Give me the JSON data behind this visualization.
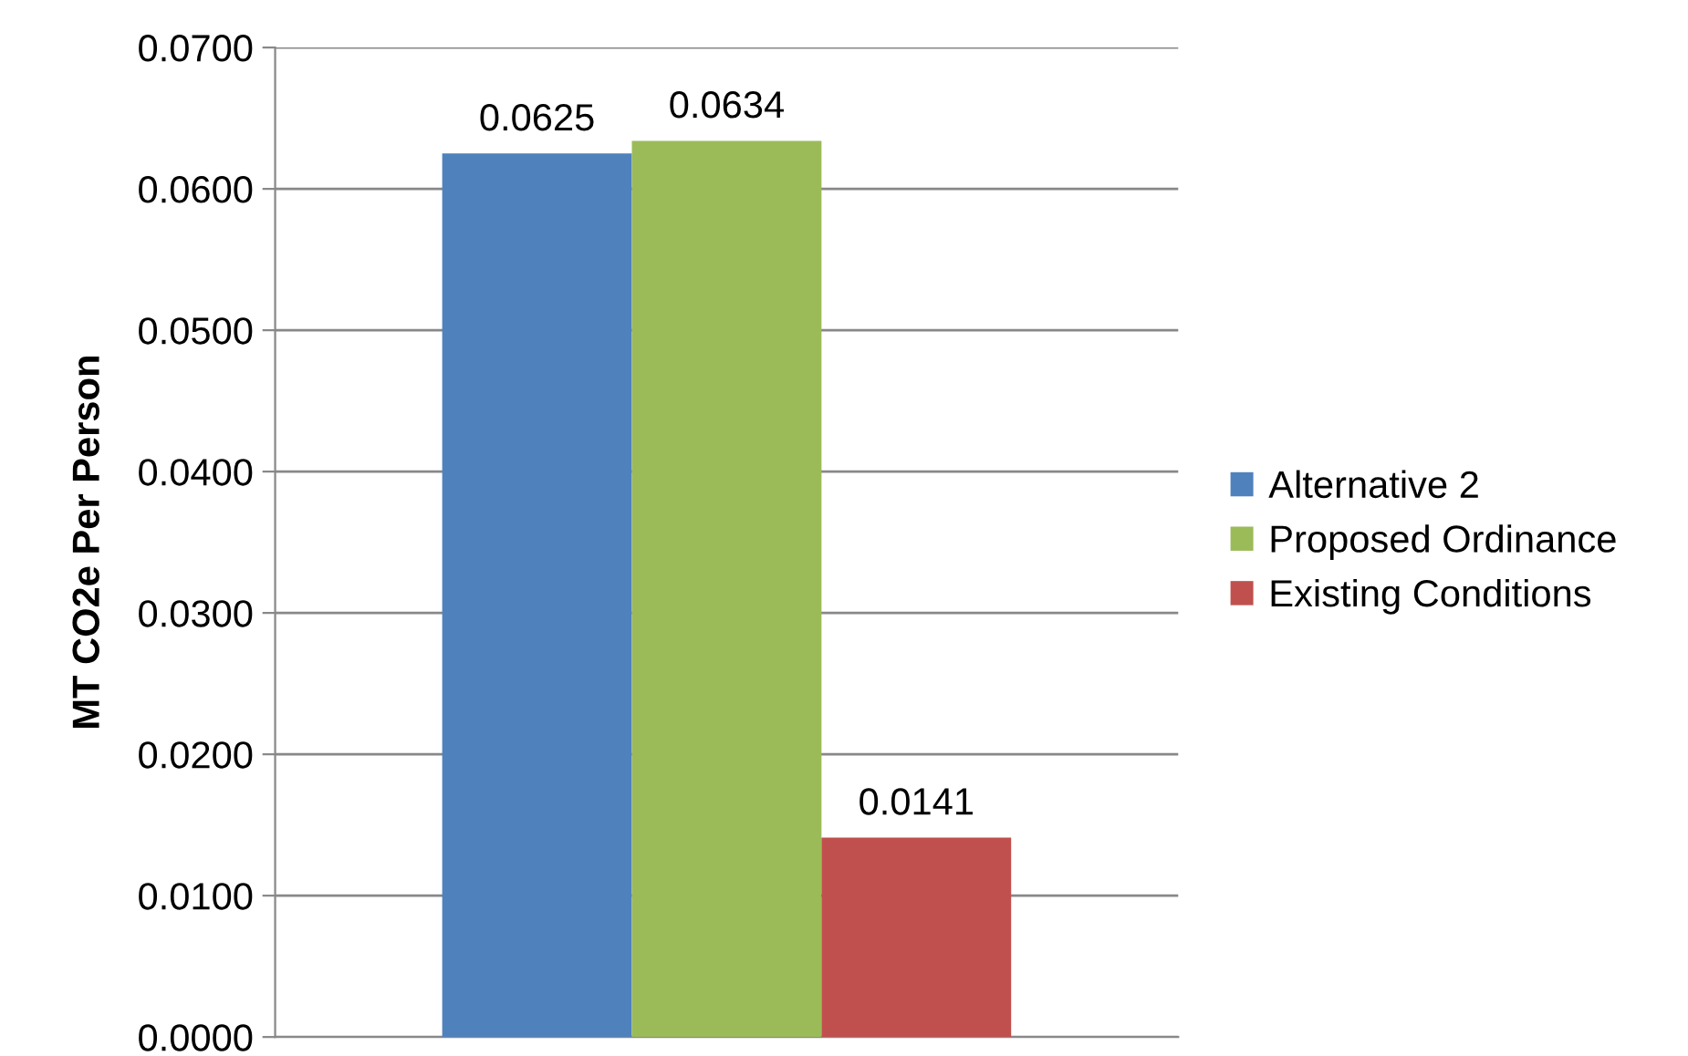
{
  "chart_data": {
    "type": "bar",
    "ylabel": "MT CO2e Per Person",
    "categories": [
      null
    ],
    "series": [
      {
        "name": "Alternative 2",
        "color": "#4f81bd",
        "values": [
          0.0625
        ]
      },
      {
        "name": "Proposed Ordinance",
        "color": "#9bbb59",
        "values": [
          0.0634
        ]
      },
      {
        "name": "Existing Conditions",
        "color": "#c0504d",
        "values": [
          0.0141
        ]
      }
    ],
    "ylim": [
      0,
      0.07
    ],
    "yticks": [
      {
        "value": 0,
        "label": "0.0000"
      },
      {
        "value": 0.01,
        "label": "0.0100"
      },
      {
        "value": 0.02,
        "label": "0.0200"
      },
      {
        "value": 0.03,
        "label": "0.0300"
      },
      {
        "value": 0.04,
        "label": "0.0400"
      },
      {
        "value": 0.05,
        "label": "0.0500"
      },
      {
        "value": 0.06,
        "label": "0.0600"
      },
      {
        "value": 0.07,
        "label": "0.0700"
      }
    ],
    "grid": "y",
    "legend": "right",
    "data_labels": true
  }
}
